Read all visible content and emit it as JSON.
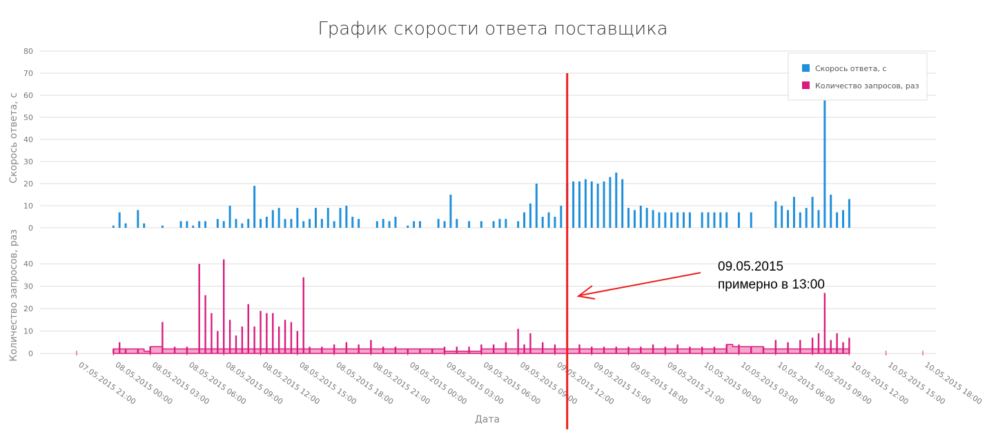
{
  "chart_data": {
    "type": "bar",
    "title": "График скорости ответа поставщика",
    "xlabel": "Дата",
    "x_ticks": [
      "07.05.2015 21:00",
      "08.05.2015 00:00",
      "08.05.2015 03:00",
      "08.05.2015 06:00",
      "08.05.2015 09:00",
      "08.05.2015 12:00",
      "08.05.2015 15:00",
      "08.05.2015 18:00",
      "08.05.2015 21:00",
      "09.05.2015 00:00",
      "09.05.2015 03:00",
      "09.05.2015 06:00",
      "09.05.2015 09:00",
      "09.05.2015 12:00",
      "09.05.2015 15:00",
      "09.05.2015 18:00",
      "09.05.2015 21:00",
      "10.05.2015 00:00",
      "10.05.2015 03:00",
      "10.05.2015 06:00",
      "10.05.2015 09:00",
      "10.05.2015 12:00",
      "10.05.2015 15:00",
      "10.05.2015 18:00"
    ],
    "xlim": [
      "07.05.2015 21:00",
      "10.05.2015 18:00"
    ],
    "legend": {
      "position": "top-right",
      "entries": [
        "Скорось ответа, с",
        "Количество запросов, раз"
      ]
    },
    "grid": true,
    "panels": [
      {
        "series_name": "Скорось ответа, с",
        "ylabel": "Скорось ответа, с",
        "ylim": [
          0,
          80
        ],
        "y_ticks": [
          0,
          10,
          20,
          30,
          40,
          50,
          60,
          70,
          80
        ],
        "color": "#1f8fdb",
        "style": "bars",
        "points": [
          [
            "08.05.2015 00:00",
            1
          ],
          [
            "08.05.2015 00:30",
            7
          ],
          [
            "08.05.2015 01:00",
            2
          ],
          [
            "08.05.2015 02:00",
            8
          ],
          [
            "08.05.2015 02:30",
            2
          ],
          [
            "08.05.2015 04:00",
            1
          ],
          [
            "08.05.2015 05:30",
            3
          ],
          [
            "08.05.2015 06:00",
            3
          ],
          [
            "08.05.2015 06:30",
            1
          ],
          [
            "08.05.2015 07:00",
            3
          ],
          [
            "08.05.2015 07:30",
            3
          ],
          [
            "08.05.2015 08:30",
            4
          ],
          [
            "08.05.2015 09:00",
            3
          ],
          [
            "08.05.2015 09:30",
            10
          ],
          [
            "08.05.2015 10:00",
            4
          ],
          [
            "08.05.2015 10:30",
            2
          ],
          [
            "08.05.2015 11:00",
            4
          ],
          [
            "08.05.2015 11:30",
            19
          ],
          [
            "08.05.2015 12:00",
            4
          ],
          [
            "08.05.2015 12:30",
            5
          ],
          [
            "08.05.2015 13:00",
            8
          ],
          [
            "08.05.2015 13:30",
            9
          ],
          [
            "08.05.2015 14:00",
            4
          ],
          [
            "08.05.2015 14:30",
            4
          ],
          [
            "08.05.2015 15:00",
            9
          ],
          [
            "08.05.2015 15:30",
            3
          ],
          [
            "08.05.2015 16:00",
            4
          ],
          [
            "08.05.2015 16:30",
            9
          ],
          [
            "08.05.2015 17:00",
            4
          ],
          [
            "08.05.2015 17:30",
            9
          ],
          [
            "08.05.2015 18:00",
            3
          ],
          [
            "08.05.2015 18:30",
            9
          ],
          [
            "08.05.2015 19:00",
            10
          ],
          [
            "08.05.2015 19:30",
            5
          ],
          [
            "08.05.2015 20:00",
            4
          ],
          [
            "08.05.2015 21:30",
            3
          ],
          [
            "08.05.2015 22:00",
            4
          ],
          [
            "08.05.2015 22:30",
            3
          ],
          [
            "08.05.2015 23:00",
            5
          ],
          [
            "09.05.2015 00:00",
            1
          ],
          [
            "09.05.2015 00:30",
            3
          ],
          [
            "09.05.2015 01:00",
            3
          ],
          [
            "09.05.2015 02:30",
            4
          ],
          [
            "09.05.2015 03:00",
            3
          ],
          [
            "09.05.2015 03:30",
            15
          ],
          [
            "09.05.2015 04:00",
            4
          ],
          [
            "09.05.2015 05:00",
            3
          ],
          [
            "09.05.2015 06:00",
            3
          ],
          [
            "09.05.2015 07:00",
            3
          ],
          [
            "09.05.2015 07:30",
            4
          ],
          [
            "09.05.2015 08:00",
            4
          ],
          [
            "09.05.2015 09:00",
            3
          ],
          [
            "09.05.2015 09:30",
            7
          ],
          [
            "09.05.2015 10:00",
            11
          ],
          [
            "09.05.2015 10:30",
            20
          ],
          [
            "09.05.2015 11:00",
            5
          ],
          [
            "09.05.2015 11:30",
            7
          ],
          [
            "09.05.2015 12:00",
            5
          ],
          [
            "09.05.2015 12:30",
            10
          ],
          [
            "09.05.2015 13:00",
            20
          ],
          [
            "09.05.2015 13:30",
            21
          ],
          [
            "09.05.2015 14:00",
            21
          ],
          [
            "09.05.2015 14:30",
            22
          ],
          [
            "09.05.2015 15:00",
            21
          ],
          [
            "09.05.2015 15:30",
            20
          ],
          [
            "09.05.2015 16:00",
            21
          ],
          [
            "09.05.2015 16:30",
            23
          ],
          [
            "09.05.2015 17:00",
            25
          ],
          [
            "09.05.2015 17:30",
            22
          ],
          [
            "09.05.2015 18:00",
            9
          ],
          [
            "09.05.2015 18:30",
            8
          ],
          [
            "09.05.2015 19:00",
            10
          ],
          [
            "09.05.2015 19:30",
            9
          ],
          [
            "09.05.2015 20:00",
            8
          ],
          [
            "09.05.2015 20:30",
            7
          ],
          [
            "09.05.2015 21:00",
            7
          ],
          [
            "09.05.2015 21:30",
            7
          ],
          [
            "09.05.2015 22:00",
            7
          ],
          [
            "09.05.2015 22:30",
            7
          ],
          [
            "09.05.2015 23:00",
            7
          ],
          [
            "10.05.2015 00:00",
            7
          ],
          [
            "10.05.2015 00:30",
            7
          ],
          [
            "10.05.2015 01:00",
            7
          ],
          [
            "10.05.2015 01:30",
            7
          ],
          [
            "10.05.2015 02:00",
            7
          ],
          [
            "10.05.2015 03:00",
            7
          ],
          [
            "10.05.2015 04:00",
            7
          ],
          [
            "10.05.2015 06:00",
            12
          ],
          [
            "10.05.2015 06:30",
            10
          ],
          [
            "10.05.2015 07:00",
            8
          ],
          [
            "10.05.2015 07:30",
            14
          ],
          [
            "10.05.2015 08:00",
            7
          ],
          [
            "10.05.2015 08:30",
            9
          ],
          [
            "10.05.2015 09:00",
            14
          ],
          [
            "10.05.2015 09:30",
            8
          ],
          [
            "10.05.2015 10:00",
            58
          ],
          [
            "10.05.2015 10:30",
            15
          ],
          [
            "10.05.2015 11:00",
            7
          ],
          [
            "10.05.2015 11:30",
            8
          ],
          [
            "10.05.2015 12:00",
            13
          ]
        ]
      },
      {
        "series_name": "Количество запросов, раз",
        "ylabel": "Количество запросов, раз",
        "ylim": [
          0,
          45
        ],
        "y_ticks": [
          0,
          10,
          20,
          30,
          40
        ],
        "color": "#d81b7d",
        "style": "area-with-spikes",
        "points": [
          [
            "08.05.2015 00:00",
            2
          ],
          [
            "08.05.2015 00:30",
            5
          ],
          [
            "08.05.2015 01:00",
            2
          ],
          [
            "08.05.2015 02:00",
            2
          ],
          [
            "08.05.2015 03:00",
            3
          ],
          [
            "08.05.2015 04:00",
            14
          ],
          [
            "08.05.2015 05:00",
            3
          ],
          [
            "08.05.2015 06:00",
            3
          ],
          [
            "08.05.2015 07:00",
            40
          ],
          [
            "08.05.2015 07:30",
            26
          ],
          [
            "08.05.2015 08:00",
            18
          ],
          [
            "08.05.2015 08:30",
            10
          ],
          [
            "08.05.2015 09:00",
            42
          ],
          [
            "08.05.2015 09:30",
            15
          ],
          [
            "08.05.2015 10:00",
            8
          ],
          [
            "08.05.2015 10:30",
            12
          ],
          [
            "08.05.2015 11:00",
            22
          ],
          [
            "08.05.2015 11:30",
            12
          ],
          [
            "08.05.2015 12:00",
            19
          ],
          [
            "08.05.2015 12:30",
            18
          ],
          [
            "08.05.2015 13:00",
            18
          ],
          [
            "08.05.2015 13:30",
            12
          ],
          [
            "08.05.2015 14:00",
            15
          ],
          [
            "08.05.2015 14:30",
            14
          ],
          [
            "08.05.2015 15:00",
            10
          ],
          [
            "08.05.2015 15:30",
            34
          ],
          [
            "08.05.2015 16:00",
            3
          ],
          [
            "08.05.2015 17:00",
            3
          ],
          [
            "08.05.2015 18:00",
            4
          ],
          [
            "08.05.2015 19:00",
            5
          ],
          [
            "08.05.2015 20:00",
            4
          ],
          [
            "08.05.2015 21:00",
            6
          ],
          [
            "08.05.2015 22:00",
            3
          ],
          [
            "08.05.2015 23:00",
            3
          ],
          [
            "09.05.2015 00:00",
            2
          ],
          [
            "09.05.2015 01:00",
            2
          ],
          [
            "09.05.2015 02:00",
            2
          ],
          [
            "09.05.2015 03:00",
            3
          ],
          [
            "09.05.2015 04:00",
            3
          ],
          [
            "09.05.2015 05:00",
            3
          ],
          [
            "09.05.2015 06:00",
            4
          ],
          [
            "09.05.2015 07:00",
            4
          ],
          [
            "09.05.2015 08:00",
            5
          ],
          [
            "09.05.2015 09:00",
            11
          ],
          [
            "09.05.2015 09:30",
            4
          ],
          [
            "09.05.2015 10:00",
            9
          ],
          [
            "09.05.2015 11:00",
            5
          ],
          [
            "09.05.2015 12:00",
            4
          ],
          [
            "09.05.2015 13:00",
            4
          ],
          [
            "09.05.2015 14:00",
            4
          ],
          [
            "09.05.2015 15:00",
            3
          ],
          [
            "09.05.2015 16:00",
            3
          ],
          [
            "09.05.2015 17:00",
            3
          ],
          [
            "09.05.2015 18:00",
            3
          ],
          [
            "09.05.2015 19:00",
            3
          ],
          [
            "09.05.2015 20:00",
            4
          ],
          [
            "09.05.2015 21:00",
            3
          ],
          [
            "09.05.2015 22:00",
            4
          ],
          [
            "09.05.2015 23:00",
            3
          ],
          [
            "10.05.2015 00:00",
            3
          ],
          [
            "10.05.2015 01:00",
            3
          ],
          [
            "10.05.2015 02:00",
            4
          ],
          [
            "10.05.2015 03:00",
            4
          ],
          [
            "10.05.2015 04:00",
            3
          ],
          [
            "10.05.2015 05:00",
            3
          ],
          [
            "10.05.2015 06:00",
            6
          ],
          [
            "10.05.2015 07:00",
            5
          ],
          [
            "10.05.2015 08:00",
            6
          ],
          [
            "10.05.2015 09:00",
            7
          ],
          [
            "10.05.2015 09:30",
            9
          ],
          [
            "10.05.2015 10:00",
            27
          ],
          [
            "10.05.2015 10:30",
            6
          ],
          [
            "10.05.2015 11:00",
            9
          ],
          [
            "10.05.2015 11:30",
            5
          ],
          [
            "10.05.2015 12:00",
            7
          ]
        ],
        "baseline": [
          [
            "08.05.2015 00:00",
            2
          ],
          [
            "08.05.2015 02:30",
            1
          ],
          [
            "08.05.2015 03:00",
            3
          ],
          [
            "08.05.2015 04:00",
            2
          ],
          [
            "08.05.2015 06:00",
            2
          ],
          [
            "08.05.2015 16:00",
            2
          ],
          [
            "08.05.2015 18:00",
            2
          ],
          [
            "09.05.2015 00:00",
            2
          ],
          [
            "09.05.2015 03:00",
            1
          ],
          [
            "09.05.2015 06:00",
            2
          ],
          [
            "09.05.2015 13:00",
            2
          ],
          [
            "09.05.2015 20:00",
            2
          ],
          [
            "10.05.2015 00:00",
            2
          ],
          [
            "10.05.2015 02:00",
            4
          ],
          [
            "10.05.2015 02:30",
            3
          ],
          [
            "10.05.2015 05:00",
            2
          ],
          [
            "10.05.2015 12:00",
            2
          ]
        ]
      }
    ],
    "annotations": {
      "vertical_line": {
        "x": "09.05.2015 13:00",
        "color": "#ee1c1c"
      },
      "arrow_text_line1": "09.05.2015",
      "arrow_text_line2": "примерно в 13:00",
      "arrow_color": "#ee1c1c"
    }
  }
}
